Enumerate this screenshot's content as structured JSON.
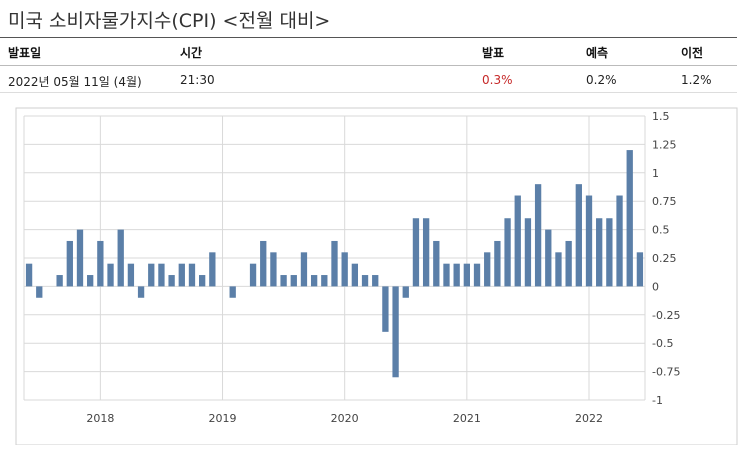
{
  "title": "미국 소비자물가지수(CPI) <전월 대비>",
  "table": {
    "headers": {
      "date": "발표일",
      "time": "시간",
      "actual": "발표",
      "forecast": "예측",
      "previous": "이전"
    },
    "row": {
      "date": "2022년 05월 11일 (4월)",
      "time": "21:30",
      "actual": "0.3%",
      "forecast": "0.2%",
      "previous": "1.2%"
    }
  },
  "colors": {
    "bar": "#5b7fa8",
    "actual": "#c62828",
    "grid": "#d9d9d9",
    "frame": "#cfcfcf"
  },
  "chart_data": {
    "type": "bar",
    "grid": true,
    "ylim": [
      -1,
      1.5
    ],
    "yticks": [
      1.5,
      1.25,
      1,
      0.75,
      0.5,
      0.25,
      0,
      -0.25,
      -0.5,
      -0.75,
      -1
    ],
    "ytick_labels": [
      "1.5",
      "1.25",
      "1",
      "0.75",
      "0.5",
      "0.25",
      "0",
      "-0.25",
      "-0.5",
      "-0.75",
      "-1"
    ],
    "xlabels": [
      {
        "label": "2018",
        "index": 7
      },
      {
        "label": "2019",
        "index": 19
      },
      {
        "label": "2020",
        "index": 31
      },
      {
        "label": "2021",
        "index": 43
      },
      {
        "label": "2022",
        "index": 55
      }
    ],
    "values": [
      0.2,
      -0.1,
      0.0,
      0.1,
      0.4,
      0.5,
      0.1,
      0.4,
      0.2,
      0.5,
      0.2,
      -0.1,
      0.2,
      0.2,
      0.1,
      0.2,
      0.2,
      0.1,
      0.3,
      0.0,
      -0.1,
      0.0,
      0.2,
      0.4,
      0.3,
      0.1,
      0.1,
      0.3,
      0.1,
      0.1,
      0.4,
      0.3,
      0.2,
      0.1,
      0.1,
      -0.4,
      -0.8,
      -0.1,
      0.6,
      0.6,
      0.4,
      0.2,
      0.2,
      0.2,
      0.2,
      0.3,
      0.4,
      0.6,
      0.8,
      0.6,
      0.9,
      0.5,
      0.3,
      0.4,
      0.9,
      0.8,
      0.6,
      0.6,
      0.8,
      1.2,
      0.3
    ]
  }
}
